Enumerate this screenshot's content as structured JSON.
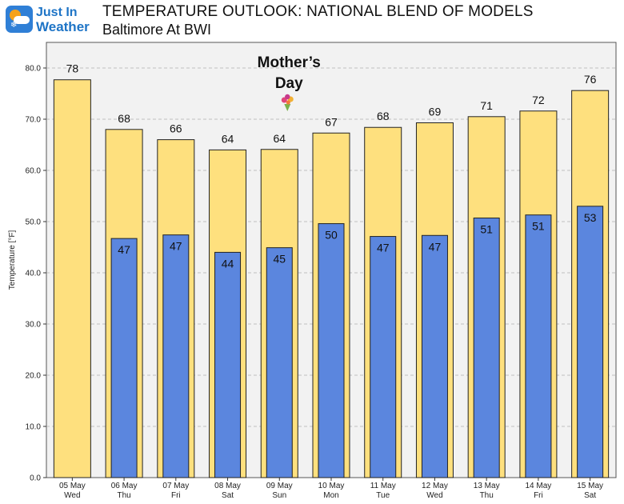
{
  "logo": {
    "line1": "Just In",
    "line2": "Weather"
  },
  "header": {
    "title": "TEMPERATURE OUTLOOK: NATIONAL BLEND OF MODELS",
    "subtitle": "Baltimore At BWI"
  },
  "colors": {
    "high_bar": "#FEE07E",
    "low_bar": "#5B86DE",
    "plot_bg": "#F2F2F2",
    "grid": "#B0B0B0",
    "brand": "#1E74C6"
  },
  "chart_data": {
    "type": "bar",
    "ylabel": "Temperature [°F]",
    "ylim": [
      0,
      85
    ],
    "yticks": [
      "0.0",
      "10.0",
      "20.0",
      "30.0",
      "40.0",
      "50.0",
      "60.0",
      "70.0",
      "80.0"
    ],
    "grid": true,
    "categories": [
      {
        "date": "05 May",
        "day": "Wed"
      },
      {
        "date": "06 May",
        "day": "Thu"
      },
      {
        "date": "07 May",
        "day": "Fri"
      },
      {
        "date": "08 May",
        "day": "Sat"
      },
      {
        "date": "09 May",
        "day": "Sun"
      },
      {
        "date": "10 May",
        "day": "Mon"
      },
      {
        "date": "11 May",
        "day": "Tue"
      },
      {
        "date": "12 May",
        "day": "Wed"
      },
      {
        "date": "13 May",
        "day": "Thu"
      },
      {
        "date": "14 May",
        "day": "Fri"
      },
      {
        "date": "15 May",
        "day": "Sat"
      }
    ],
    "series": [
      {
        "key": "high",
        "values": [
          77.7,
          68.0,
          66.0,
          64.0,
          64.1,
          67.3,
          68.4,
          69.3,
          70.5,
          71.6,
          75.6
        ],
        "labels": [
          "78",
          "68",
          "66",
          "64",
          "64",
          "67",
          "68",
          "69",
          "71",
          "72",
          "76"
        ]
      },
      {
        "key": "low",
        "values": [
          null,
          46.7,
          47.4,
          44.0,
          44.9,
          49.6,
          47.1,
          47.3,
          50.7,
          51.3,
          53.0
        ],
        "labels": [
          "",
          "47",
          "47",
          "44",
          "45",
          "50",
          "47",
          "47",
          "51",
          "51",
          "53"
        ]
      }
    ],
    "annotation": {
      "text_line1": "Mother’s",
      "text_line2": "Day",
      "category_index": 4
    }
  }
}
